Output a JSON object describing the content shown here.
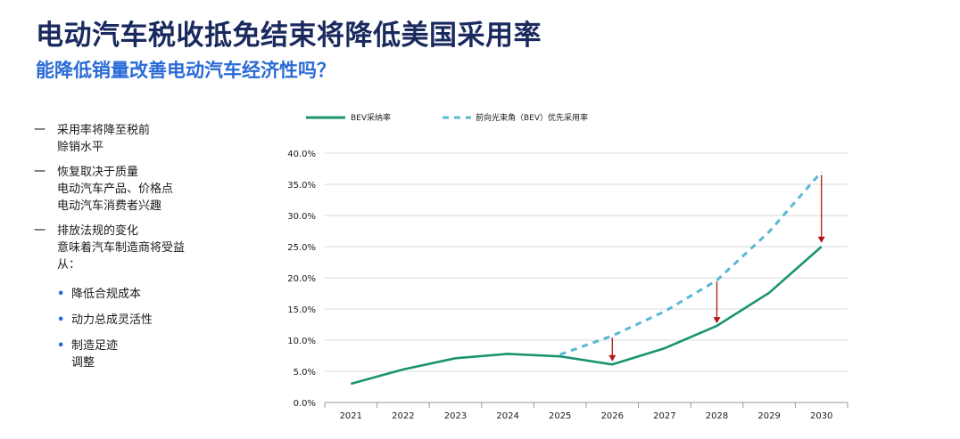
{
  "title": "电动汽车税收抵免结束将降低美国采用率",
  "subtitle": "能降低销量改善电动汽车经济性吗？",
  "bullets": [
    {
      "dash": "一",
      "lines": [
        "采用率将降至税前",
        "赊销水平"
      ]
    },
    {
      "dash": "一",
      "lines": [
        "恢复取决于质量",
        "电动汽车产品、价格点",
        "电动汽车消费者兴趣"
      ]
    },
    {
      "dash": "一",
      "lines": [
        "排放法规的变化",
        "意味着汽车制造商将受益",
        "从："
      ]
    }
  ],
  "sub_bullets": [
    {
      "dot": "•",
      "lines": [
        "降低合规成本"
      ]
    },
    {
      "dot": "•",
      "lines": [
        "动力总成灵活性"
      ]
    },
    {
      "dot": "•",
      "lines": [
        "制造足迹",
        "调整"
      ]
    }
  ],
  "colors": {
    "bev": "#1a9470",
    "forecast": "#5bb8d6",
    "arrow": "#b01818",
    "grid": "#d8d8d8"
  },
  "chart_data": {
    "type": "line",
    "x": [
      "2021",
      "2022",
      "2023",
      "2024",
      "2025",
      "2026",
      "2027",
      "2028",
      "2029",
      "2030"
    ],
    "series": [
      {
        "name": "BEV采纳率",
        "values": [
          3.0,
          5.3,
          7.1,
          7.8,
          7.4,
          6.1,
          8.7,
          12.3,
          17.6,
          25.0
        ],
        "style": "solid"
      },
      {
        "name": "前向光束角（BEV）优先采用率",
        "values": [
          null,
          null,
          null,
          null,
          7.7,
          10.7,
          14.6,
          19.6,
          27.4,
          37.0
        ],
        "style": "dashed"
      }
    ],
    "arrows": [
      {
        "x": "2026",
        "from": 10.4,
        "to": 6.6
      },
      {
        "x": "2028",
        "from": 19.4,
        "to": 12.7
      },
      {
        "x": "2030",
        "from": 36.5,
        "to": 25.6
      }
    ],
    "yticks": [
      "0.0%",
      "5.0%",
      "10.0%",
      "15.0%",
      "20.0%",
      "25.0%",
      "30.0%",
      "35.0%",
      "40.0%"
    ],
    "ylim": [
      0,
      40
    ],
    "grid": true,
    "legend_position": "top"
  }
}
